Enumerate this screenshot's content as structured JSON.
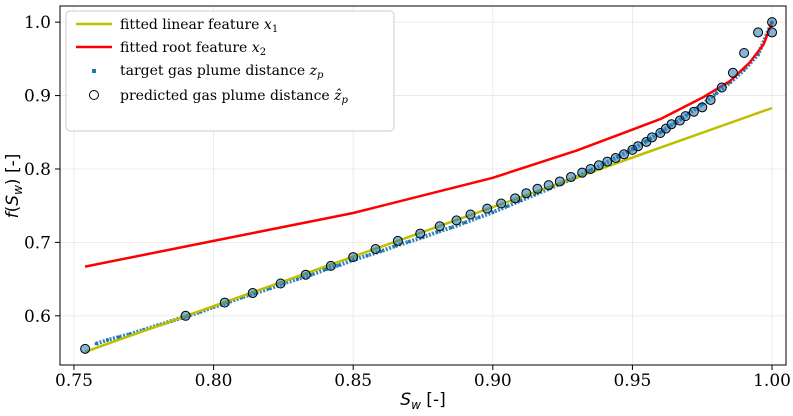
{
  "chart_data": {
    "type": "line",
    "xlabel": "S_w [-]",
    "ylabel": "f(S_w) [-]",
    "xlim": [
      0.745,
      1.005
    ],
    "ylim": [
      0.533,
      1.022
    ],
    "xticks": [
      "0.75",
      "0.80",
      "0.85",
      "0.90",
      "0.95",
      "1.00"
    ],
    "yticks": [
      "0.6",
      "0.7",
      "0.8",
      "0.9",
      "1.0"
    ],
    "grid": true,
    "legend_position": "top-left",
    "series": [
      {
        "name": "fitted linear feature x1",
        "kind": "line",
        "color": "#bfbf00",
        "x": [
          0.754,
          1.0
        ],
        "y": [
          0.551,
          0.883
        ]
      },
      {
        "name": "fitted root feature x2",
        "kind": "line",
        "color": "#ff0000",
        "x": [
          0.754,
          0.8,
          0.85,
          0.9,
          0.93,
          0.96,
          0.975,
          0.985,
          0.992,
          0.997,
          1.0
        ],
        "y": [
          0.667,
          0.702,
          0.74,
          0.788,
          0.825,
          0.868,
          0.897,
          0.92,
          0.945,
          0.97,
          1.0
        ]
      },
      {
        "name": "target gas plume distance z_p",
        "kind": "scatter-small",
        "color": "#1f77b4",
        "x": [
          0.758,
          0.762,
          0.766,
          0.77,
          0.775,
          0.78,
          0.785,
          0.79,
          0.795,
          0.8,
          0.805,
          0.81,
          0.815,
          0.82,
          0.825,
          0.83,
          0.835,
          0.84,
          0.845,
          0.85,
          0.855,
          0.86,
          0.865,
          0.87,
          0.875,
          0.88,
          0.885,
          0.89,
          0.895,
          0.9,
          0.905,
          0.91,
          0.915,
          0.92,
          0.925,
          0.93,
          0.935,
          0.94,
          0.945,
          0.95,
          0.955,
          0.96,
          0.965,
          0.97,
          0.975,
          0.98,
          0.985,
          0.99,
          0.995,
          1.0
        ],
        "y": [
          0.562,
          0.567,
          0.571,
          0.575,
          0.581,
          0.587,
          0.593,
          0.599,
          0.605,
          0.612,
          0.618,
          0.625,
          0.631,
          0.637,
          0.644,
          0.65,
          0.656,
          0.663,
          0.669,
          0.676,
          0.682,
          0.688,
          0.695,
          0.701,
          0.707,
          0.714,
          0.72,
          0.727,
          0.734,
          0.741,
          0.749,
          0.757,
          0.765,
          0.773,
          0.781,
          0.789,
          0.798,
          0.807,
          0.817,
          0.827,
          0.838,
          0.85,
          0.862,
          0.875,
          0.888,
          0.903,
          0.918,
          0.935,
          0.956,
          1.0
        ]
      },
      {
        "name": "predicted gas plume distance ẑ_p",
        "kind": "scatter-circle",
        "color": "#000000",
        "x": [
          0.754,
          0.79,
          0.804,
          0.814,
          0.824,
          0.833,
          0.842,
          0.85,
          0.858,
          0.866,
          0.874,
          0.881,
          0.887,
          0.892,
          0.898,
          0.903,
          0.908,
          0.912,
          0.916,
          0.92,
          0.924,
          0.928,
          0.932,
          0.935,
          0.938,
          0.941,
          0.944,
          0.947,
          0.95,
          0.952,
          0.955,
          0.957,
          0.96,
          0.962,
          0.964,
          0.967,
          0.969,
          0.972,
          0.975,
          0.978,
          0.982,
          0.986,
          0.99,
          0.995,
          1.0,
          1.0
        ],
        "y": [
          0.555,
          0.6,
          0.618,
          0.631,
          0.644,
          0.656,
          0.668,
          0.68,
          0.691,
          0.702,
          0.712,
          0.722,
          0.73,
          0.738,
          0.746,
          0.753,
          0.76,
          0.767,
          0.773,
          0.778,
          0.783,
          0.789,
          0.795,
          0.8,
          0.805,
          0.81,
          0.815,
          0.82,
          0.826,
          0.831,
          0.837,
          0.843,
          0.849,
          0.855,
          0.861,
          0.866,
          0.872,
          0.878,
          0.884,
          0.894,
          0.911,
          0.931,
          0.958,
          0.986,
          0.986,
          1.0
        ]
      }
    ]
  }
}
